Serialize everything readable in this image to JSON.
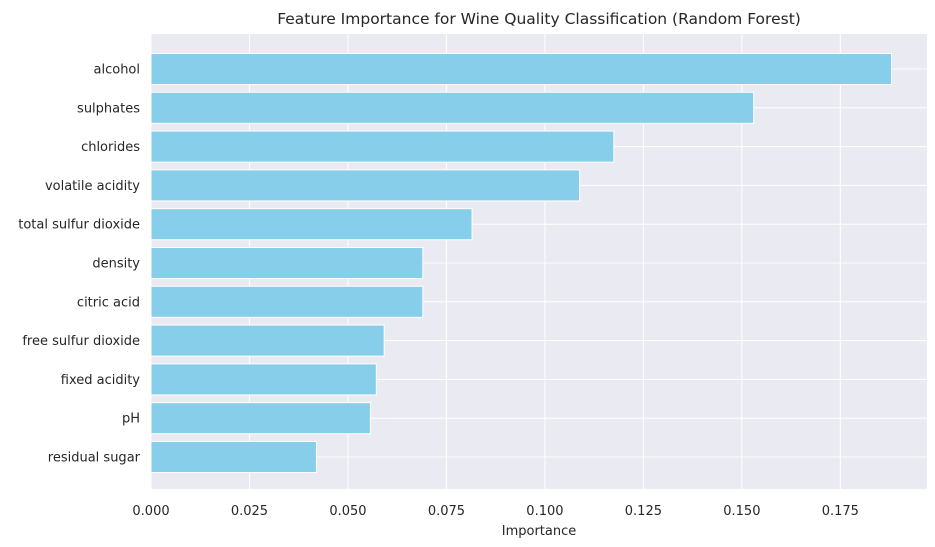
{
  "chart_data": {
    "type": "bar",
    "orientation": "horizontal",
    "title": "Feature Importance for Wine Quality Classification (Random Forest)",
    "xlabel": "Importance",
    "ylabel": "",
    "categories": [
      "alcohol",
      "sulphates",
      "chlorides",
      "volatile acidity",
      "total sulfur dioxide",
      "density",
      "citric acid",
      "free sulfur dioxide",
      "fixed acidity",
      "pH",
      "residual sugar"
    ],
    "values": [
      0.188,
      0.153,
      0.1175,
      0.1088,
      0.0815,
      0.069,
      0.069,
      0.0592,
      0.0572,
      0.0557,
      0.042
    ],
    "xlim": [
      0,
      0.197
    ],
    "xticks": [
      "0.000",
      "0.025",
      "0.050",
      "0.075",
      "0.100",
      "0.125",
      "0.150",
      "0.175"
    ],
    "xtick_values": [
      0,
      0.025,
      0.05,
      0.075,
      0.1,
      0.125,
      0.15,
      0.175
    ],
    "grid": true,
    "bar_color": "#87ceeb",
    "background_color": "#eaeaf2",
    "grid_color": "#ffffff"
  }
}
